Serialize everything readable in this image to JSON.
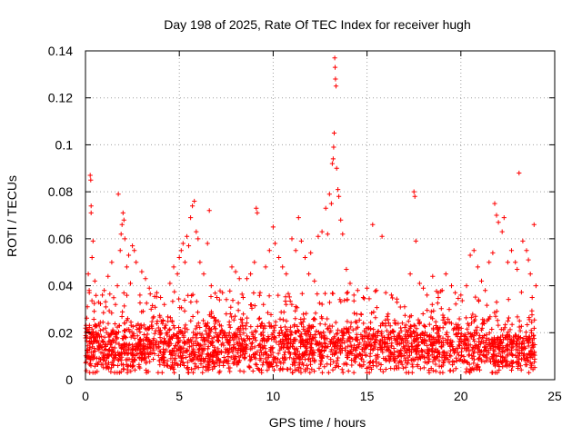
{
  "chart_data": {
    "type": "scatter",
    "title": "Day 198 of 2025, Rate Of TEC Index for receiver hugh",
    "xlabel": "GPS time / hours",
    "ylabel": "ROTI / TECUs",
    "xlim": [
      0,
      25
    ],
    "ylim": [
      0,
      0.14
    ],
    "xticks": [
      0,
      5,
      10,
      15,
      20,
      25
    ],
    "xtick_labels": [
      "0",
      "5",
      "10",
      "15",
      "20",
      "25"
    ],
    "yticks": [
      0,
      0.02,
      0.04,
      0.06,
      0.08,
      0.1,
      0.12,
      0.14
    ],
    "ytick_labels": [
      "0",
      "0.02",
      "0.04",
      "0.06",
      "0.08",
      "0.1",
      "0.12",
      "0.14"
    ],
    "grid": true,
    "marker": "+",
    "color": "#ff0000",
    "series": [
      {
        "name": "ROTI",
        "points": [
          [
            0.1,
            0.031
          ],
          [
            0.15,
            0.045
          ],
          [
            0.2,
            0.038
          ],
          [
            0.25,
            0.087
          ],
          [
            0.28,
            0.085
          ],
          [
            0.3,
            0.074
          ],
          [
            0.3,
            0.071
          ],
          [
            0.35,
            0.052
          ],
          [
            0.4,
            0.059
          ],
          [
            0.5,
            0.042
          ],
          [
            0.7,
            0.033
          ],
          [
            0.9,
            0.036
          ],
          [
            1.0,
            0.038
          ],
          [
            1.2,
            0.044
          ],
          [
            1.4,
            0.05
          ],
          [
            1.6,
            0.032
          ],
          [
            1.7,
            0.04
          ],
          [
            1.75,
            0.079
          ],
          [
            1.85,
            0.055
          ],
          [
            1.9,
            0.062
          ],
          [
            1.95,
            0.066
          ],
          [
            2.0,
            0.071
          ],
          [
            2.05,
            0.068
          ],
          [
            2.1,
            0.06
          ],
          [
            2.2,
            0.048
          ],
          [
            2.3,
            0.053
          ],
          [
            2.4,
            0.041
          ],
          [
            2.5,
            0.057
          ],
          [
            2.6,
            0.055
          ],
          [
            2.7,
            0.05
          ],
          [
            2.9,
            0.036
          ],
          [
            3.0,
            0.046
          ],
          [
            3.2,
            0.043
          ],
          [
            3.4,
            0.039
          ],
          [
            3.5,
            0.03
          ],
          [
            3.8,
            0.037
          ],
          [
            4.0,
            0.035
          ],
          [
            4.2,
            0.032
          ],
          [
            4.5,
            0.041
          ],
          [
            4.7,
            0.048
          ],
          [
            4.9,
            0.045
          ],
          [
            5.0,
            0.052
          ],
          [
            5.1,
            0.055
          ],
          [
            5.2,
            0.058
          ],
          [
            5.3,
            0.05
          ],
          [
            5.4,
            0.061
          ],
          [
            5.5,
            0.057
          ],
          [
            5.6,
            0.069
          ],
          [
            5.7,
            0.074
          ],
          [
            5.8,
            0.076
          ],
          [
            5.9,
            0.063
          ],
          [
            6.0,
            0.06
          ],
          [
            6.1,
            0.05
          ],
          [
            6.3,
            0.045
          ],
          [
            6.5,
            0.058
          ],
          [
            6.6,
            0.072
          ],
          [
            6.7,
            0.04
          ],
          [
            7.0,
            0.035
          ],
          [
            7.3,
            0.037
          ],
          [
            7.5,
            0.028
          ],
          [
            7.8,
            0.048
          ],
          [
            8.0,
            0.046
          ],
          [
            8.2,
            0.043
          ],
          [
            8.4,
            0.035
          ],
          [
            8.6,
            0.043
          ],
          [
            8.8,
            0.045
          ],
          [
            9.0,
            0.05
          ],
          [
            9.1,
            0.073
          ],
          [
            9.15,
            0.071
          ],
          [
            9.3,
            0.037
          ],
          [
            9.6,
            0.048
          ],
          [
            9.8,
            0.055
          ],
          [
            10.0,
            0.065
          ],
          [
            10.1,
            0.058
          ],
          [
            10.3,
            0.052
          ],
          [
            10.5,
            0.048
          ],
          [
            10.7,
            0.045
          ],
          [
            11.0,
            0.06
          ],
          [
            11.2,
            0.055
          ],
          [
            11.35,
            0.069
          ],
          [
            11.5,
            0.059
          ],
          [
            11.7,
            0.052
          ],
          [
            11.9,
            0.045
          ],
          [
            12.0,
            0.054
          ],
          [
            12.2,
            0.042
          ],
          [
            12.4,
            0.061
          ],
          [
            12.6,
            0.063
          ],
          [
            12.8,
            0.073
          ],
          [
            12.9,
            0.062
          ],
          [
            13.0,
            0.079
          ],
          [
            13.1,
            0.075
          ],
          [
            13.15,
            0.092
          ],
          [
            13.2,
            0.094
          ],
          [
            13.22,
            0.099
          ],
          [
            13.25,
            0.105
          ],
          [
            13.28,
            0.137
          ],
          [
            13.3,
            0.133
          ],
          [
            13.32,
            0.128
          ],
          [
            13.35,
            0.125
          ],
          [
            13.38,
            0.09
          ],
          [
            13.45,
            0.081
          ],
          [
            13.5,
            0.078
          ],
          [
            13.6,
            0.068
          ],
          [
            13.7,
            0.062
          ],
          [
            13.9,
            0.047
          ],
          [
            14.1,
            0.041
          ],
          [
            14.3,
            0.036
          ],
          [
            14.5,
            0.038
          ],
          [
            14.8,
            0.035
          ],
          [
            15.0,
            0.039
          ],
          [
            15.3,
            0.066
          ],
          [
            15.5,
            0.038
          ],
          [
            15.8,
            0.061
          ],
          [
            16.0,
            0.037
          ],
          [
            16.3,
            0.036
          ],
          [
            16.6,
            0.033
          ],
          [
            17.0,
            0.031
          ],
          [
            17.3,
            0.045
          ],
          [
            17.5,
            0.08
          ],
          [
            17.55,
            0.078
          ],
          [
            17.6,
            0.059
          ],
          [
            17.8,
            0.041
          ],
          [
            18.0,
            0.039
          ],
          [
            18.2,
            0.036
          ],
          [
            18.5,
            0.044
          ],
          [
            18.8,
            0.035
          ],
          [
            19.0,
            0.038
          ],
          [
            19.2,
            0.045
          ],
          [
            19.5,
            0.04
          ],
          [
            19.7,
            0.037
          ],
          [
            20.0,
            0.036
          ],
          [
            20.3,
            0.04
          ],
          [
            20.5,
            0.053
          ],
          [
            20.7,
            0.055
          ],
          [
            20.9,
            0.048
          ],
          [
            21.1,
            0.042
          ],
          [
            21.3,
            0.038
          ],
          [
            21.5,
            0.05
          ],
          [
            21.7,
            0.054
          ],
          [
            21.8,
            0.075
          ],
          [
            21.9,
            0.07
          ],
          [
            22.0,
            0.067
          ],
          [
            22.2,
            0.063
          ],
          [
            22.3,
            0.069
          ],
          [
            22.5,
            0.05
          ],
          [
            22.7,
            0.055
          ],
          [
            22.9,
            0.05
          ],
          [
            23.0,
            0.047
          ],
          [
            23.1,
            0.088
          ],
          [
            23.3,
            0.059
          ],
          [
            23.5,
            0.055
          ],
          [
            23.6,
            0.051
          ],
          [
            23.7,
            0.045
          ],
          [
            23.8,
            0.035
          ],
          [
            23.9,
            0.066
          ],
          [
            24.0,
            0.04
          ]
        ],
        "baseline_band": {
          "x_range": [
            0,
            24
          ],
          "y_center_typical": 0.014,
          "y_range_typical": [
            0.004,
            0.03
          ],
          "note": "dense cloud of points across the full day"
        }
      }
    ]
  }
}
